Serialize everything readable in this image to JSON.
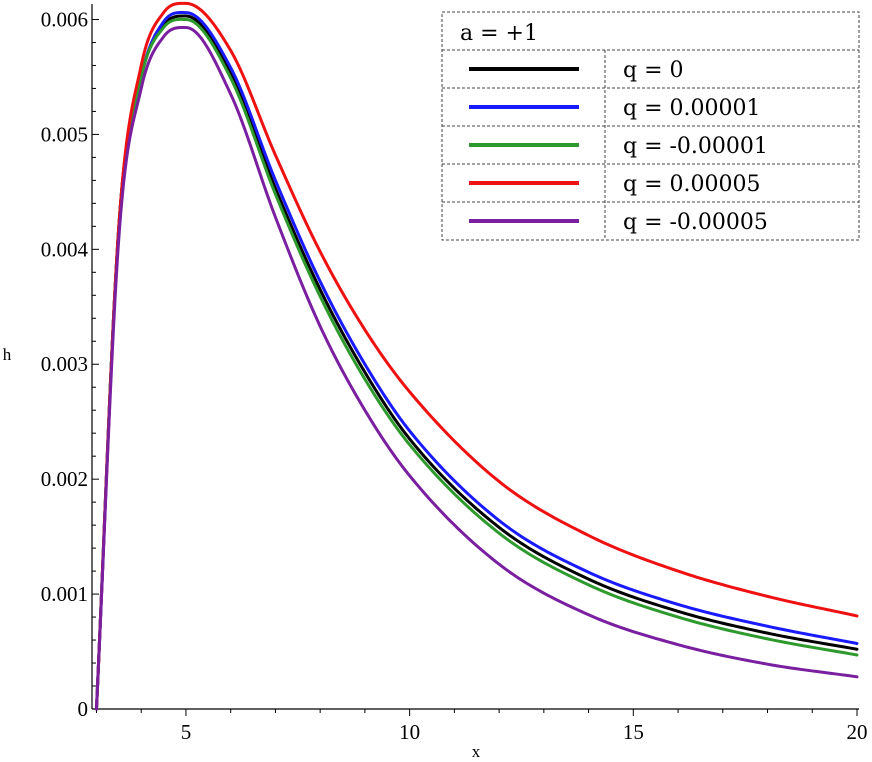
{
  "chart_data": {
    "type": "line",
    "xlabel": "x",
    "ylabel": "h",
    "xlim": [
      2.9,
      20
    ],
    "ylim": [
      0,
      0.0061
    ],
    "x_ticks": [
      5,
      10,
      15,
      20
    ],
    "x_tick_labels": [
      "5",
      "10",
      "15",
      "20"
    ],
    "y_ticks": [
      0,
      0.001,
      0.002,
      0.003,
      0.004,
      0.005,
      0.006
    ],
    "y_tick_labels": [
      "0",
      "0.001",
      "0.002",
      "0.003",
      "0.004",
      "0.005",
      "0.006"
    ],
    "grid": false,
    "legend_position": "top-right",
    "legend_title": "a = +1",
    "series": [
      {
        "name": "q = 0",
        "color": "#000000",
        "x": [
          3.0,
          3.5,
          4.0,
          4.5,
          5.0,
          6.0,
          7.0,
          8.0,
          9.0,
          10.0,
          12.0,
          14.0,
          16.0,
          18.0,
          20.0
        ],
        "y": [
          0.0,
          0.0042,
          0.0055,
          0.00595,
          0.00603,
          0.00553,
          0.00453,
          0.00365,
          0.00293,
          0.00235,
          0.00158,
          0.00113,
          0.00085,
          0.00066,
          0.00052
        ]
      },
      {
        "name": "q = 0.00001",
        "color": "#1a1aff",
        "x": [
          3.0,
          3.5,
          4.0,
          4.5,
          5.0,
          6.0,
          7.0,
          8.0,
          9.0,
          10.0,
          12.0,
          14.0,
          16.0,
          18.0,
          20.0
        ],
        "y": [
          0.0,
          0.0042,
          0.0055,
          0.00598,
          0.00606,
          0.00558,
          0.0046,
          0.00372,
          0.003,
          0.00242,
          0.00164,
          0.00119,
          0.00091,
          0.00072,
          0.00057
        ]
      },
      {
        "name": "q = -0.00001",
        "color": "#2e9a2e",
        "x": [
          3.0,
          3.5,
          4.0,
          4.5,
          5.0,
          6.0,
          7.0,
          8.0,
          9.0,
          10.0,
          12.0,
          14.0,
          16.0,
          18.0,
          20.0
        ],
        "y": [
          0.0,
          0.0042,
          0.0055,
          0.00593,
          0.006,
          0.00549,
          0.00448,
          0.00359,
          0.00287,
          0.0023,
          0.00153,
          0.00108,
          0.0008,
          0.00061,
          0.00047
        ]
      },
      {
        "name": "q = 0.00005",
        "color": "#ee1111",
        "x": [
          3.0,
          3.5,
          4.0,
          4.5,
          5.0,
          6.0,
          7.0,
          8.0,
          9.0,
          10.0,
          12.0,
          14.0,
          16.0,
          18.0,
          20.0
        ],
        "y": [
          0.0,
          0.0042,
          0.0056,
          0.00606,
          0.00614,
          0.00573,
          0.00482,
          0.00398,
          0.0033,
          0.00276,
          0.00198,
          0.00151,
          0.0012,
          0.00098,
          0.00081
        ]
      },
      {
        "name": "q = -0.00005",
        "color": "#7a1fa0",
        "x": [
          3.0,
          3.5,
          4.0,
          4.5,
          5.0,
          6.0,
          7.0,
          8.0,
          9.0,
          10.0,
          12.0,
          14.0,
          16.0,
          18.0,
          20.0
        ],
        "y": [
          0.0,
          0.0041,
          0.0054,
          0.00585,
          0.00593,
          0.00535,
          0.00428,
          0.00333,
          0.0026,
          0.00203,
          0.00126,
          0.00082,
          0.00056,
          0.00039,
          0.00028
        ]
      }
    ]
  },
  "colors": {
    "axis": "#000000",
    "legend_border": "#444444",
    "background": "#ffffff"
  }
}
